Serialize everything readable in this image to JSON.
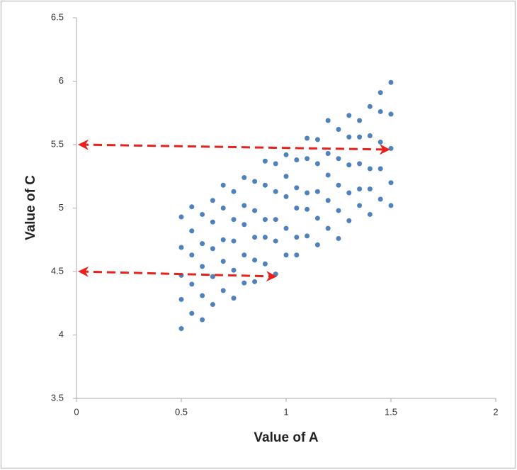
{
  "chart_data": {
    "type": "scatter",
    "x_label": "Value of A",
    "y_label": "Value of C",
    "xlim": [
      0,
      2
    ],
    "xticks": [
      0,
      0.5,
      1,
      1.5,
      2
    ],
    "ylim": [
      3.5,
      6.5
    ],
    "yticks": [
      3.5,
      4,
      4.5,
      5,
      5.5,
      6,
      6.5
    ],
    "color": "#4f81bd",
    "grid": false,
    "x": [
      0.5,
      0.5,
      0.5,
      0.5,
      0.5,
      0.55,
      0.55,
      0.55,
      0.55,
      0.55,
      0.6,
      0.6,
      0.6,
      0.6,
      0.6,
      0.65,
      0.65,
      0.65,
      0.65,
      0.65,
      0.7,
      0.7,
      0.7,
      0.7,
      0.7,
      0.75,
      0.75,
      0.75,
      0.75,
      0.75,
      0.8,
      0.8,
      0.8,
      0.8,
      0.8,
      0.85,
      0.85,
      0.85,
      0.85,
      0.85,
      0.9,
      0.9,
      0.9,
      0.9,
      0.9,
      0.95,
      0.95,
      0.95,
      0.95,
      0.95,
      1,
      1,
      1,
      1,
      1,
      1.05,
      1.05,
      1.05,
      1.05,
      1.05,
      1.1,
      1.1,
      1.1,
      1.1,
      1.1,
      1.15,
      1.15,
      1.15,
      1.15,
      1.15,
      1.2,
      1.2,
      1.2,
      1.2,
      1.2,
      1.25,
      1.25,
      1.25,
      1.25,
      1.25,
      1.3,
      1.3,
      1.3,
      1.3,
      1.3,
      1.35,
      1.35,
      1.35,
      1.35,
      1.35,
      1.4,
      1.4,
      1.4,
      1.4,
      1.4,
      1.45,
      1.45,
      1.45,
      1.45,
      1.45,
      1.5,
      1.5,
      1.5,
      1.5,
      1.5
    ],
    "values": [
      4.05,
      4.28,
      4.47,
      4.69,
      4.93,
      4.17,
      4.4,
      4.63,
      4.82,
      5.01,
      4.12,
      4.31,
      4.54,
      4.72,
      4.95,
      4.24,
      4.46,
      4.68,
      4.89,
      5.06,
      4.35,
      4.58,
      4.75,
      5.0,
      5.18,
      4.29,
      4.51,
      4.74,
      4.91,
      5.13,
      4.41,
      4.63,
      4.87,
      5.02,
      5.24,
      4.42,
      4.59,
      4.77,
      4.98,
      5.21,
      4.56,
      4.77,
      4.91,
      5.18,
      5.37,
      4.48,
      4.74,
      4.91,
      5.13,
      5.35,
      4.63,
      4.84,
      5.09,
      5.25,
      5.42,
      4.63,
      4.77,
      5.0,
      5.16,
      5.38,
      4.78,
      4.99,
      5.12,
      5.39,
      5.55,
      4.71,
      4.92,
      5.13,
      5.35,
      5.54,
      4.84,
      5.06,
      5.26,
      5.43,
      5.69,
      4.76,
      4.98,
      5.18,
      5.39,
      5.62,
      4.9,
      5.12,
      5.34,
      5.56,
      5.73,
      5.02,
      5.15,
      5.35,
      5.56,
      5.69,
      4.95,
      5.15,
      5.31,
      5.57,
      5.8,
      5.07,
      5.31,
      5.52,
      5.76,
      5.91,
      5.02,
      5.2,
      5.47,
      5.74,
      5.99
    ]
  }
}
